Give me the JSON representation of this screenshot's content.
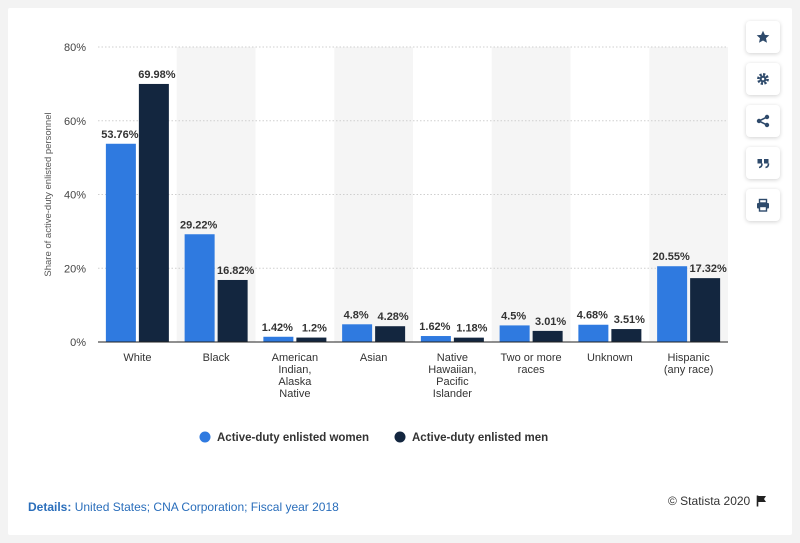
{
  "toolbar": {
    "buttons": [
      {
        "name": "favorite-button",
        "icon": "star-icon"
      },
      {
        "name": "settings-button",
        "icon": "gear-icon"
      },
      {
        "name": "share-button",
        "icon": "share-icon"
      },
      {
        "name": "cite-button",
        "icon": "quote-icon"
      },
      {
        "name": "print-button",
        "icon": "print-icon"
      }
    ]
  },
  "footer": {
    "details_label": "Details:",
    "details_text": "United States; CNA Corporation; Fiscal year 2018",
    "copyright": "© Statista 2020"
  },
  "colors": {
    "women": "#2f7ae0",
    "men": "#13263f",
    "band": "#f5f5f5"
  },
  "chart_data": {
    "type": "bar",
    "ylabel": "Share of active-duty enlisted personnel",
    "ylim": [
      0,
      80
    ],
    "yticks": [
      0,
      20,
      40,
      60,
      80
    ],
    "ytick_labels": [
      "0%",
      "20%",
      "40%",
      "60%",
      "80%"
    ],
    "grid": true,
    "legend_position": "bottom",
    "categories": [
      [
        "White"
      ],
      [
        "Black"
      ],
      [
        "American",
        "Indian,",
        "Alaska",
        "Native"
      ],
      [
        "Asian"
      ],
      [
        "Native",
        "Hawaiian,",
        "Pacific",
        "Islander"
      ],
      [
        "Two or more",
        "races"
      ],
      [
        "Unknown"
      ],
      [
        "Hispanic",
        "(any race)"
      ]
    ],
    "series": [
      {
        "name": "Active-duty enlisted women",
        "values": [
          53.76,
          29.22,
          1.42,
          4.8,
          1.62,
          4.5,
          4.68,
          20.55
        ],
        "labels": [
          "53.76%",
          "29.22%",
          "1.42%",
          "4.8%",
          "1.62%",
          "4.5%",
          "4.68%",
          "20.55%"
        ]
      },
      {
        "name": "Active-duty enlisted men",
        "values": [
          69.98,
          16.82,
          1.2,
          4.28,
          1.18,
          3.01,
          3.51,
          17.32
        ],
        "labels": [
          "69.98%",
          "16.82%",
          "1.2%",
          "4.28%",
          "1.18%",
          "3.01%",
          "3.51%",
          "17.32%"
        ]
      }
    ]
  }
}
